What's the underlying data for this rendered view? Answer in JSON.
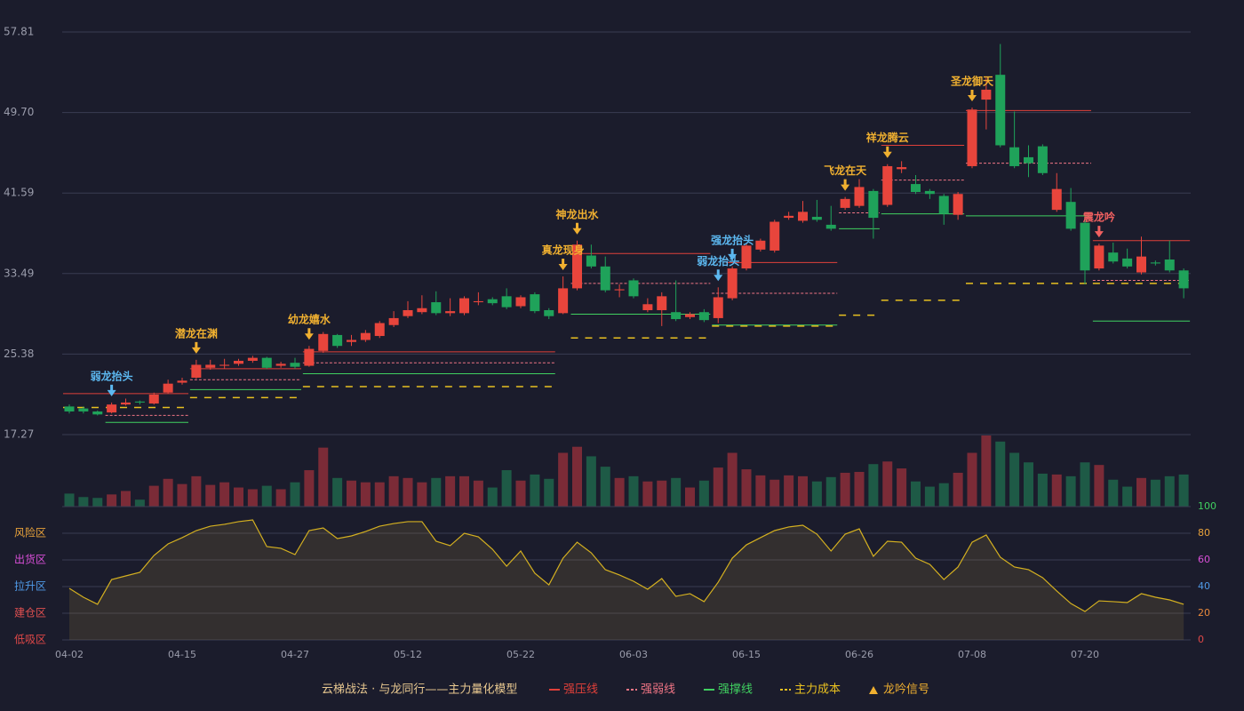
{
  "chart_data": {
    "type": "candlestick",
    "categories": [
      "04-02",
      null,
      null,
      null,
      null,
      null,
      null,
      null,
      "04-15",
      null,
      null,
      null,
      null,
      null,
      null,
      null,
      "04-27",
      null,
      null,
      null,
      null,
      null,
      null,
      null,
      "05-12",
      null,
      null,
      null,
      null,
      null,
      null,
      null,
      "05-22",
      null,
      null,
      null,
      null,
      null,
      null,
      null,
      "06-03",
      null,
      null,
      null,
      null,
      null,
      null,
      null,
      "06-15",
      null,
      null,
      null,
      null,
      null,
      null,
      null,
      "06-26",
      null,
      null,
      null,
      null,
      null,
      null,
      null,
      "07-08",
      null,
      null,
      null,
      null,
      null,
      null,
      null,
      "07-20",
      null,
      null,
      null,
      null,
      null,
      null,
      null
    ],
    "open": [
      20.1,
      19.9,
      19.6,
      19.5,
      20.3,
      20.6,
      20.4,
      21.5,
      22.5,
      23.0,
      24.0,
      24.2,
      24.4,
      24.7,
      25.0,
      24.2,
      24.5,
      24.2,
      25.7,
      27.3,
      26.6,
      26.8,
      27.2,
      28.3,
      29.2,
      29.6,
      30.6,
      29.5,
      29.5,
      30.6,
      30.9,
      31.2,
      30.2,
      31.4,
      29.8,
      29.5,
      32.0,
      35.3,
      34.2,
      31.8,
      32.8,
      29.8,
      29.8,
      29.6,
      29.1,
      29.6,
      29.0,
      31.0,
      34.0,
      35.9,
      35.8,
      39.1,
      38.8,
      39.2,
      38.4,
      40.1,
      40.3,
      41.8,
      40.4,
      44.0,
      42.5,
      41.8,
      41.3,
      39.4,
      44.3,
      51.0,
      53.5,
      46.2,
      45.2,
      46.3,
      39.9,
      40.7,
      38.6,
      34.0,
      35.6,
      35.0,
      33.6,
      34.6,
      34.9,
      33.8
    ],
    "close": [
      19.6,
      19.6,
      19.3,
      20.3,
      20.5,
      20.5,
      21.3,
      22.4,
      22.7,
      24.3,
      24.3,
      24.3,
      24.7,
      25.0,
      24.0,
      24.4,
      24.1,
      25.9,
      27.4,
      26.2,
      26.8,
      27.5,
      28.5,
      29.0,
      29.8,
      30.0,
      29.5,
      29.7,
      31.0,
      30.7,
      30.5,
      30.1,
      31.1,
      29.7,
      29.2,
      32.0,
      36.4,
      34.2,
      31.8,
      31.9,
      31.2,
      30.4,
      31.2,
      28.9,
      29.4,
      28.8,
      31.1,
      34.0,
      36.3,
      36.8,
      38.7,
      39.3,
      39.7,
      38.9,
      38.0,
      41.0,
      42.2,
      39.1,
      44.3,
      44.2,
      41.7,
      41.5,
      39.5,
      41.5,
      50.0,
      52.0,
      46.4,
      44.3,
      44.6,
      43.6,
      42.0,
      38.0,
      33.8,
      36.3,
      34.7,
      34.2,
      35.2,
      34.5,
      33.8,
      32.0
    ],
    "high": [
      20.3,
      20.1,
      19.7,
      20.5,
      20.9,
      20.7,
      21.5,
      22.8,
      23.0,
      24.8,
      24.8,
      24.9,
      24.9,
      25.2,
      25.1,
      24.6,
      25.0,
      26.2,
      27.6,
      27.4,
      27.3,
      27.8,
      28.7,
      29.7,
      30.7,
      31.3,
      31.7,
      31.0,
      31.2,
      31.6,
      31.1,
      32.0,
      31.3,
      31.6,
      30.0,
      33.2,
      36.8,
      36.4,
      35.2,
      32.4,
      33.0,
      31.0,
      31.6,
      32.8,
      29.6,
      29.9,
      32.1,
      34.2,
      36.5,
      37.0,
      38.9,
      39.7,
      40.8,
      40.9,
      40.3,
      41.2,
      43.0,
      42.0,
      44.5,
      44.8,
      43.4,
      42.0,
      41.5,
      41.7,
      50.2,
      53.2,
      56.6,
      49.8,
      46.4,
      46.5,
      43.6,
      42.1,
      39.2,
      36.5,
      36.6,
      36.0,
      37.2,
      34.8,
      36.8,
      34.0
    ],
    "low": [
      19.4,
      19.4,
      19.2,
      19.4,
      20.2,
      20.3,
      20.3,
      21.4,
      22.3,
      22.9,
      23.8,
      23.9,
      24.2,
      24.5,
      23.9,
      24.0,
      23.9,
      24.1,
      25.5,
      26.0,
      26.2,
      26.6,
      27.0,
      28.1,
      29.0,
      29.4,
      29.3,
      29.2,
      29.3,
      30.3,
      30.3,
      29.9,
      30.0,
      29.5,
      28.9,
      29.4,
      31.8,
      34.0,
      31.6,
      31.1,
      31.0,
      29.6,
      28.2,
      28.7,
      28.9,
      28.6,
      28.5,
      30.8,
      33.8,
      35.7,
      35.6,
      38.9,
      38.6,
      38.7,
      37.8,
      39.9,
      40.1,
      37.0,
      40.2,
      43.6,
      41.5,
      41.0,
      38.4,
      38.9,
      44.1,
      48.0,
      46.2,
      44.1,
      43.2,
      43.4,
      39.7,
      37.8,
      32.4,
      33.8,
      34.5,
      34.0,
      33.4,
      34.3,
      33.6,
      31.0
    ],
    "up_color": "#e8453c",
    "down_color": "#1fa25a",
    "volume_up_color": "#7b2b37",
    "volume_down_color": "#1e5a46",
    "ylim": [
      17.27,
      57.81
    ],
    "yticks": [
      17.27,
      25.38,
      33.49,
      {
        "value": 41.59,
        "label": "41.59"
      },
      {
        "value": 49.7,
        "label": "49.70"
      },
      57.81
    ],
    "grid": true,
    "volume": [
      15,
      11,
      10,
      14,
      18,
      8,
      24,
      32,
      26,
      35,
      25,
      28,
      22,
      20,
      24,
      20,
      28,
      42,
      68,
      33,
      30,
      28,
      28,
      35,
      33,
      28,
      33,
      35,
      35,
      30,
      22,
      42,
      30,
      37,
      32,
      62,
      69,
      58,
      46,
      33,
      35,
      29,
      30,
      33,
      22,
      30,
      45,
      62,
      43,
      36,
      31,
      36,
      35,
      29,
      34,
      39,
      40,
      49,
      52,
      44,
      29,
      23,
      27,
      39,
      62,
      82,
      75,
      62,
      51,
      38,
      37,
      35,
      51,
      48,
      31,
      23,
      33,
      31,
      35,
      37
    ],
    "volume_lim": [
      0,
      82
    ],
    "levels": [
      {
        "kind": "resist",
        "start": 0,
        "end": 8,
        "value": 21.4
      },
      {
        "kind": "weak",
        "start": 3,
        "end": 8,
        "value": 19.2
      },
      {
        "kind": "support",
        "start": 3,
        "end": 8,
        "value": 18.5
      },
      {
        "kind": "cost",
        "start": 0,
        "end": 8,
        "value": 20.0
      },
      {
        "kind": "resist",
        "start": 9,
        "end": 16,
        "value": 23.9
      },
      {
        "kind": "weak",
        "start": 9,
        "end": 16,
        "value": 22.8
      },
      {
        "kind": "support",
        "start": 9,
        "end": 16,
        "value": 21.8
      },
      {
        "kind": "cost",
        "start": 9,
        "end": 16,
        "value": 21.0
      },
      {
        "kind": "resist",
        "start": 17,
        "end": 34,
        "value": 25.6
      },
      {
        "kind": "weak",
        "start": 17,
        "end": 34,
        "value": 24.5
      },
      {
        "kind": "support",
        "start": 17,
        "end": 34,
        "value": 23.4
      },
      {
        "kind": "cost",
        "start": 17,
        "end": 34,
        "value": 22.1
      },
      {
        "kind": "resist",
        "start": 36,
        "end": 45,
        "value": 35.5
      },
      {
        "kind": "weak",
        "start": 36,
        "end": 45,
        "value": 32.5
      },
      {
        "kind": "support",
        "start": 36,
        "end": 45,
        "value": 29.4
      },
      {
        "kind": "cost",
        "start": 36,
        "end": 45,
        "value": 27.0
      },
      {
        "kind": "resist",
        "start": 47,
        "end": 54,
        "value": 34.6
      },
      {
        "kind": "weak",
        "start": 46,
        "end": 54,
        "value": 31.5
      },
      {
        "kind": "support",
        "start": 46,
        "end": 54,
        "value": 28.3
      },
      {
        "kind": "cost",
        "start": 46,
        "end": 54,
        "value": 28.2
      },
      {
        "kind": "weak",
        "start": 55,
        "end": 57,
        "value": 39.6
      },
      {
        "kind": "support",
        "start": 55,
        "end": 57,
        "value": 38.0
      },
      {
        "kind": "cost",
        "start": 55,
        "end": 57,
        "value": 29.3
      },
      {
        "kind": "resist",
        "start": 58,
        "end": 63,
        "value": 46.4
      },
      {
        "kind": "weak",
        "start": 58,
        "end": 63,
        "value": 42.9
      },
      {
        "kind": "support",
        "start": 58,
        "end": 63,
        "value": 39.5
      },
      {
        "kind": "cost",
        "start": 58,
        "end": 63,
        "value": 30.8
      },
      {
        "kind": "resist",
        "start": 64,
        "end": 72,
        "value": 49.9
      },
      {
        "kind": "weak",
        "start": 64,
        "end": 72,
        "value": 44.6
      },
      {
        "kind": "support",
        "start": 64,
        "end": 72,
        "value": 39.3
      },
      {
        "kind": "cost",
        "start": 64,
        "end": 72,
        "value": 32.5
      },
      {
        "kind": "resist",
        "start": 73,
        "end": 79,
        "value": 36.8
      },
      {
        "kind": "weak",
        "start": 73,
        "end": 79,
        "value": 32.8
      },
      {
        "kind": "support",
        "start": 73,
        "end": 79,
        "value": 28.7
      },
      {
        "kind": "cost",
        "start": 73,
        "end": 79,
        "value": 32.5
      }
    ],
    "level_styles": {
      "resist": {
        "color": "#e0403a",
        "dash": "none"
      },
      "weak": {
        "color": "#f07585",
        "dash": "3 2"
      },
      "support": {
        "color": "#40d060",
        "dash": "none"
      },
      "cost": {
        "color": "#e8c020",
        "dash": "8 8"
      }
    },
    "signals": [
      {
        "label": "弱龙抬头",
        "index": 3,
        "color": "#5cb8f0"
      },
      {
        "label": "潜龙在渊",
        "index": 9,
        "color": "#f0b030"
      },
      {
        "label": "幼龙嬉水",
        "index": 17,
        "color": "#f0b030"
      },
      {
        "label": "真龙现身",
        "index": 35,
        "color": "#f0b030"
      },
      {
        "label": "神龙出水",
        "index": 36,
        "color": "#f0b030"
      },
      {
        "label": "弱龙抬头",
        "index": 46,
        "color": "#5cb8f0"
      },
      {
        "label": "强龙抬头",
        "index": 47,
        "color": "#5cb8f0"
      },
      {
        "label": "飞龙在天",
        "index": 55,
        "color": "#f0b030"
      },
      {
        "label": "祥龙腾云",
        "index": 58,
        "color": "#f0b030"
      },
      {
        "label": "圣龙御天",
        "index": 64,
        "color": "#f0b030"
      },
      {
        "label": "震龙吟",
        "index": 73,
        "color": "#f06060"
      }
    ],
    "indicator": {
      "values": [
        38.7,
        32,
        26.7,
        45.3,
        48,
        50.7,
        63.3,
        72,
        76.7,
        82,
        85.3,
        86.7,
        88.7,
        90,
        70,
        68.7,
        64,
        82,
        84,
        76,
        78,
        81.3,
        85.3,
        87.3,
        88.7,
        88.7,
        74,
        70.7,
        80,
        77.3,
        68,
        55.3,
        66.7,
        50,
        41.3,
        61.3,
        73.3,
        65.3,
        52.7,
        48.7,
        44,
        38,
        46,
        32.7,
        34.7,
        28.7,
        43.3,
        61.3,
        71.3,
        76.7,
        82,
        84.7,
        86,
        79.3,
        66.7,
        79.3,
        83.3,
        62.7,
        74,
        73.3,
        61.3,
        56.7,
        45.3,
        54.7,
        73.3,
        78.7,
        62,
        54.7,
        52.7,
        46.7,
        36.7,
        27.3,
        21.3,
        29.3,
        28.7,
        28,
        34.7,
        32,
        30,
        26.7
      ],
      "color": "#d4b020",
      "ylim": [
        0,
        100
      ],
      "yticks": [
        {
          "value": 0,
          "color": "#e04848"
        },
        {
          "value": 20,
          "color": "#e8883b"
        },
        {
          "value": 40,
          "color": "#4f9ae8"
        },
        {
          "value": 60,
          "color": "#d84fd8"
        },
        {
          "value": 80,
          "color": "#e8a23b"
        },
        {
          "value": 100,
          "color": "#40d060"
        }
      ],
      "zones": [
        {
          "label": "风险区",
          "value": 80,
          "color": "#e8a23b"
        },
        {
          "label": "出货区",
          "value": 60,
          "color": "#d84fd8"
        },
        {
          "label": "拉升区",
          "value": 40,
          "color": "#4f9ae8"
        },
        {
          "label": "建仓区",
          "value": 20,
          "color": "#e05050"
        },
        {
          "label": "低吸区",
          "value": 0,
          "color": "#e04848"
        }
      ]
    },
    "legend": {
      "title": "云梯战法 · 与龙同行——主力量化模型",
      "items": [
        {
          "label": "强压线",
          "kind": "resist"
        },
        {
          "label": "强弱线",
          "kind": "weak"
        },
        {
          "label": "强撑线",
          "kind": "support"
        },
        {
          "label": "主力成本",
          "kind": "cost"
        },
        {
          "label": "龙吟信号",
          "kind": "signal",
          "color": "#f0b030"
        }
      ]
    }
  }
}
